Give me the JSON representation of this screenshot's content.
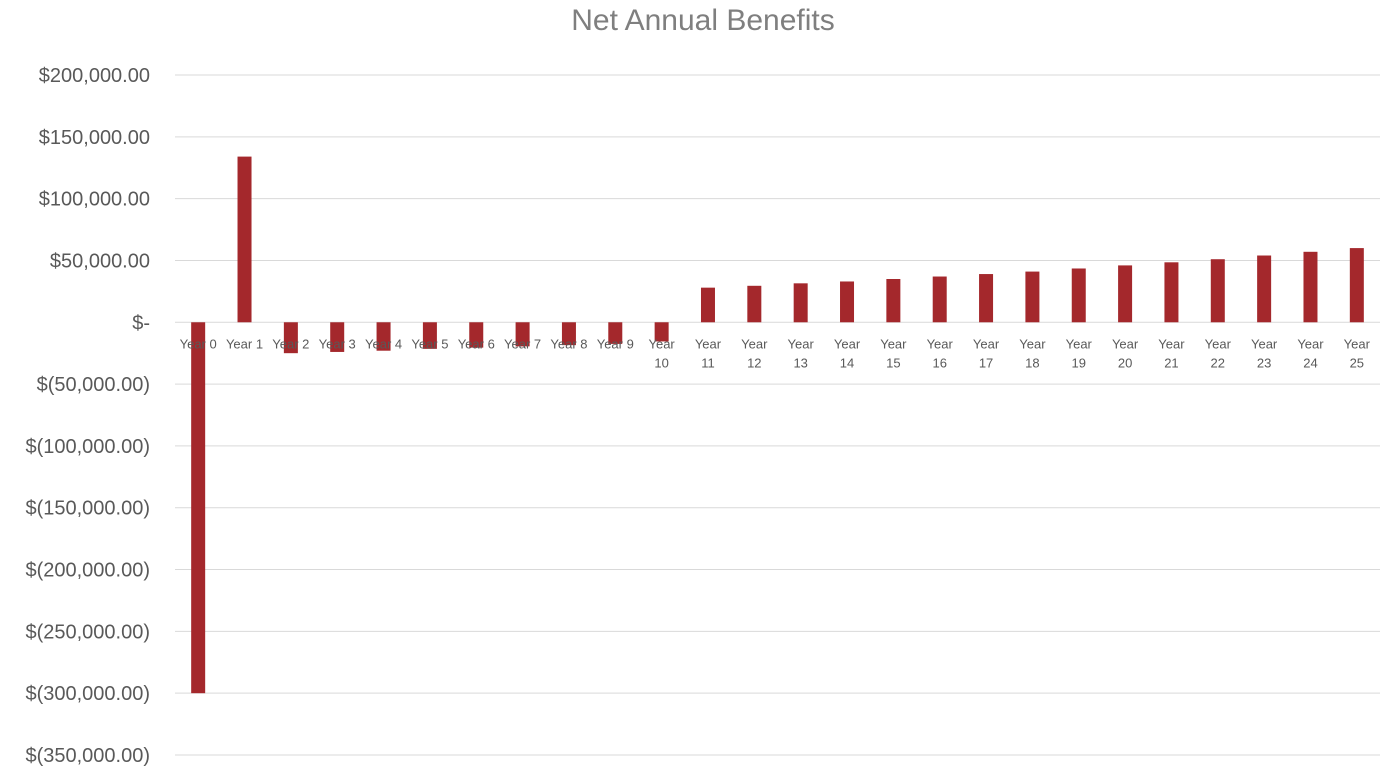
{
  "chart_data": {
    "type": "bar",
    "title": "Net Annual Benefits",
    "xlabel": "",
    "ylabel": "",
    "ylim": [
      -350000,
      200000
    ],
    "yticks": [
      200000,
      150000,
      100000,
      50000,
      0,
      -50000,
      -100000,
      -150000,
      -200000,
      -250000,
      -300000,
      -350000
    ],
    "ytick_labels": [
      "$200,000.00",
      "$150,000.00",
      "$100,000.00",
      "$50,000.00",
      "$-",
      "$(50,000.00)",
      "$(100,000.00)",
      "$(150,000.00)",
      "$(200,000.00)",
      "$(250,000.00)",
      "$(300,000.00)",
      "$(350,000.00)"
    ],
    "grid": true,
    "legend": "none",
    "bar_color": "#a4282c",
    "categories": [
      "Year 0",
      "Year 1",
      "Year 2",
      "Year 3",
      "Year 4",
      "Year 5",
      "Year 6",
      "Year 7",
      "Year 8",
      "Year 9",
      "Year 10",
      "Year 11",
      "Year 12",
      "Year 13",
      "Year 14",
      "Year 15",
      "Year 16",
      "Year 17",
      "Year 18",
      "Year 19",
      "Year 20",
      "Year 21",
      "Year 22",
      "Year 23",
      "Year 24",
      "Year 25"
    ],
    "values": [
      -300000,
      134000,
      -25000,
      -24000,
      -23000,
      -21500,
      -20500,
      -19500,
      -18500,
      -17500,
      -15500,
      28000,
      29500,
      31500,
      33000,
      35000,
      37000,
      39000,
      41000,
      43500,
      46000,
      48500,
      51000,
      54000,
      57000,
      60000
    ]
  }
}
